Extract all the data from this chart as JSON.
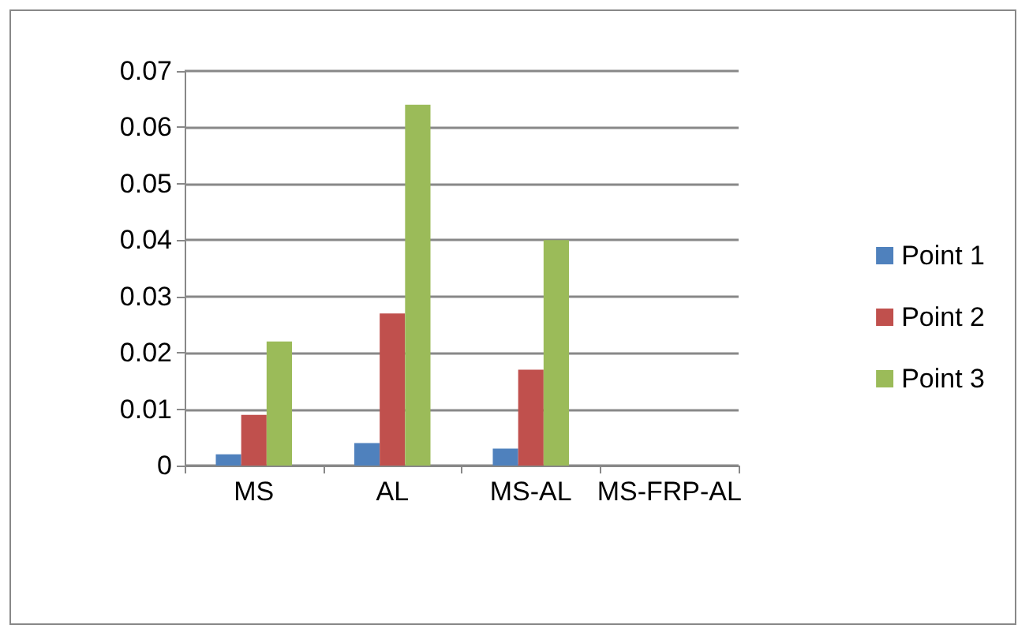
{
  "chart_data": {
    "type": "bar",
    "categories": [
      "MS",
      "AL",
      "MS-AL",
      "MS-FRP-AL"
    ],
    "series": [
      {
        "name": "Point 1",
        "color": "#4f81bd",
        "values": [
          0.002,
          0.004,
          0.003,
          0
        ]
      },
      {
        "name": "Point 2",
        "color": "#c0504d",
        "values": [
          0.009,
          0.027,
          0.017,
          0
        ]
      },
      {
        "name": "Point 3",
        "color": "#9bbb59",
        "values": [
          0.022,
          0.064,
          0.04,
          0
        ]
      }
    ],
    "ylim": [
      0,
      0.07
    ],
    "yticks": [
      0,
      0.01,
      0.02,
      0.03,
      0.04,
      0.05,
      0.06,
      0.07
    ],
    "grid": true,
    "legend": "right"
  }
}
